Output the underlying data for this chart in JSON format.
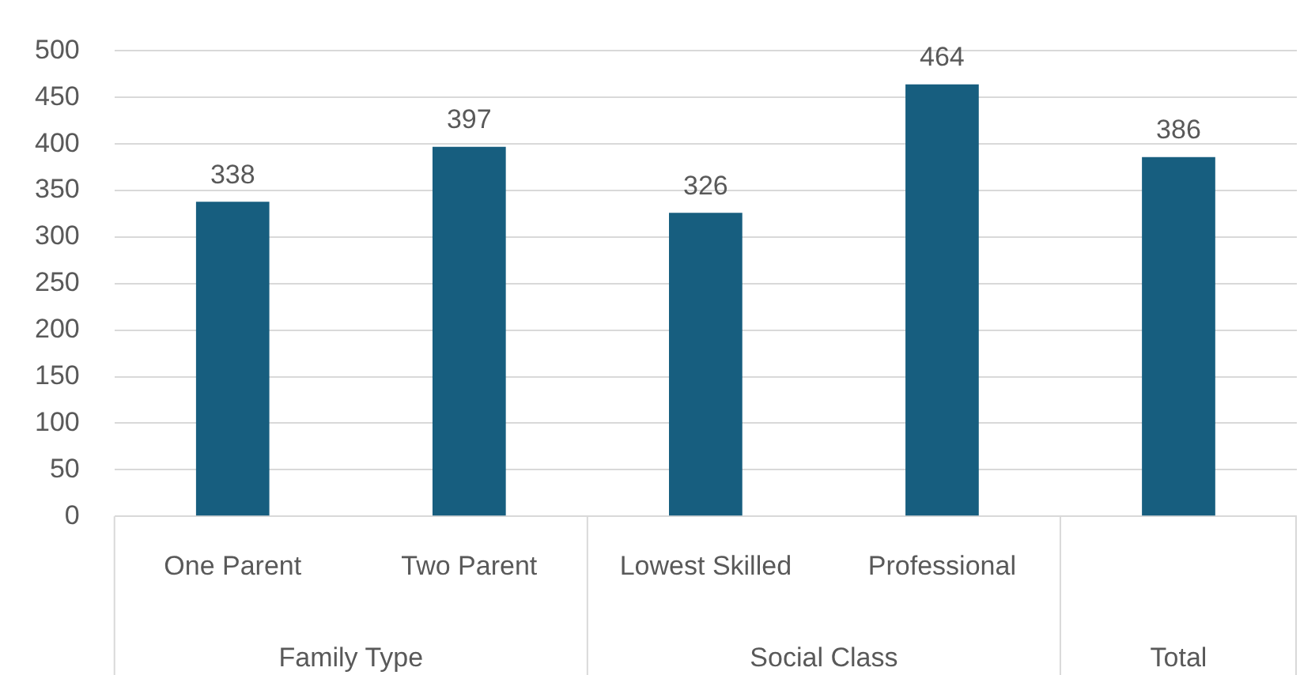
{
  "chart_data": {
    "type": "bar",
    "categories": [
      "One Parent",
      "Two Parent",
      "Lowest Skilled",
      "Professional",
      null
    ],
    "values": [
      338,
      397,
      326,
      464,
      386
    ],
    "color": "#175e7f",
    "ylim": [
      0,
      500
    ],
    "yticks": [
      0,
      50,
      100,
      150,
      200,
      250,
      300,
      350,
      400,
      450,
      500
    ],
    "grid": "y",
    "data_labels": true,
    "annotations": [
      "Family Type",
      "Social Class",
      "Total"
    ]
  }
}
